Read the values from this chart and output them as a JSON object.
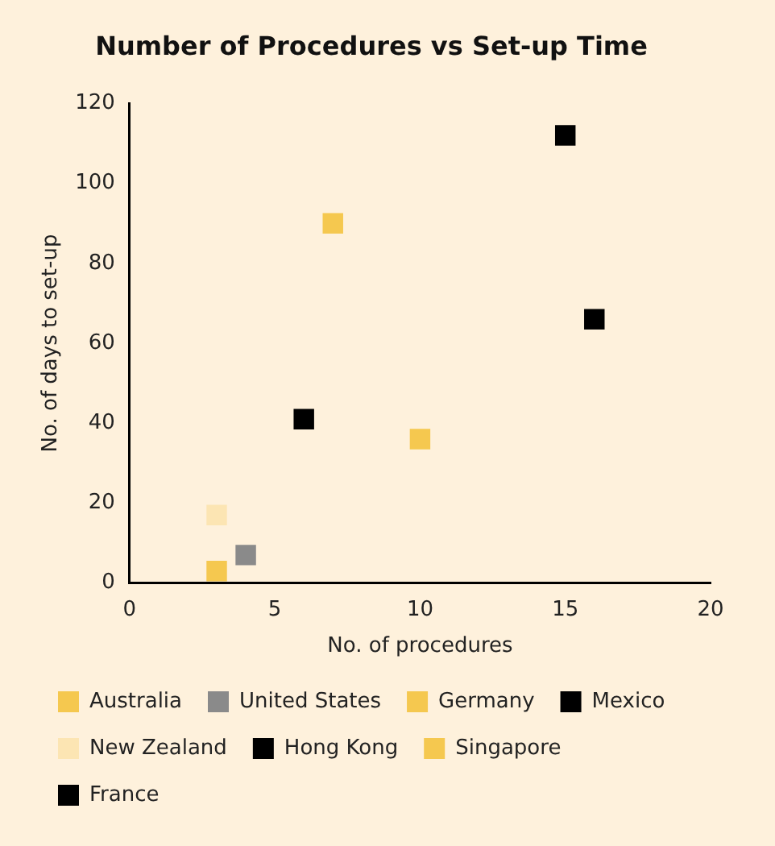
{
  "chart_data": {
    "type": "scatter",
    "title": "Number of Procedures vs Set-up Time",
    "xlabel": "No. of procedures",
    "ylabel": "No. of days to set-up",
    "xlim": [
      0,
      20
    ],
    "xticks": [
      0,
      5,
      10,
      15,
      20
    ],
    "ylim": [
      0,
      120
    ],
    "yticks": [
      0,
      20,
      40,
      60,
      80,
      100,
      120
    ],
    "legend": "bottom",
    "marker": "square",
    "series": [
      {
        "name": "Australia",
        "color": "#f5c84f",
        "x": [
          3
        ],
        "values": [
          3
        ]
      },
      {
        "name": "United States",
        "color": "#8a8a8a",
        "x": [
          4
        ],
        "values": [
          7
        ]
      },
      {
        "name": "Germany",
        "color": "#f5c84f",
        "x": [
          7
        ],
        "values": [
          90
        ]
      },
      {
        "name": "Mexico",
        "color": "#000000",
        "x": [
          15
        ],
        "values": [
          112
        ]
      },
      {
        "name": "New Zealand",
        "color": "#fce5b3",
        "x": [
          3
        ],
        "values": [
          17
        ]
      },
      {
        "name": "Hong Kong",
        "color": "#000000",
        "x": [
          6
        ],
        "values": [
          41
        ]
      },
      {
        "name": "Singapore",
        "color": "#f5c84f",
        "x": [
          10
        ],
        "values": [
          36
        ]
      },
      {
        "name": "France",
        "color": "#000000",
        "x": [
          16
        ],
        "values": [
          66
        ]
      }
    ]
  }
}
